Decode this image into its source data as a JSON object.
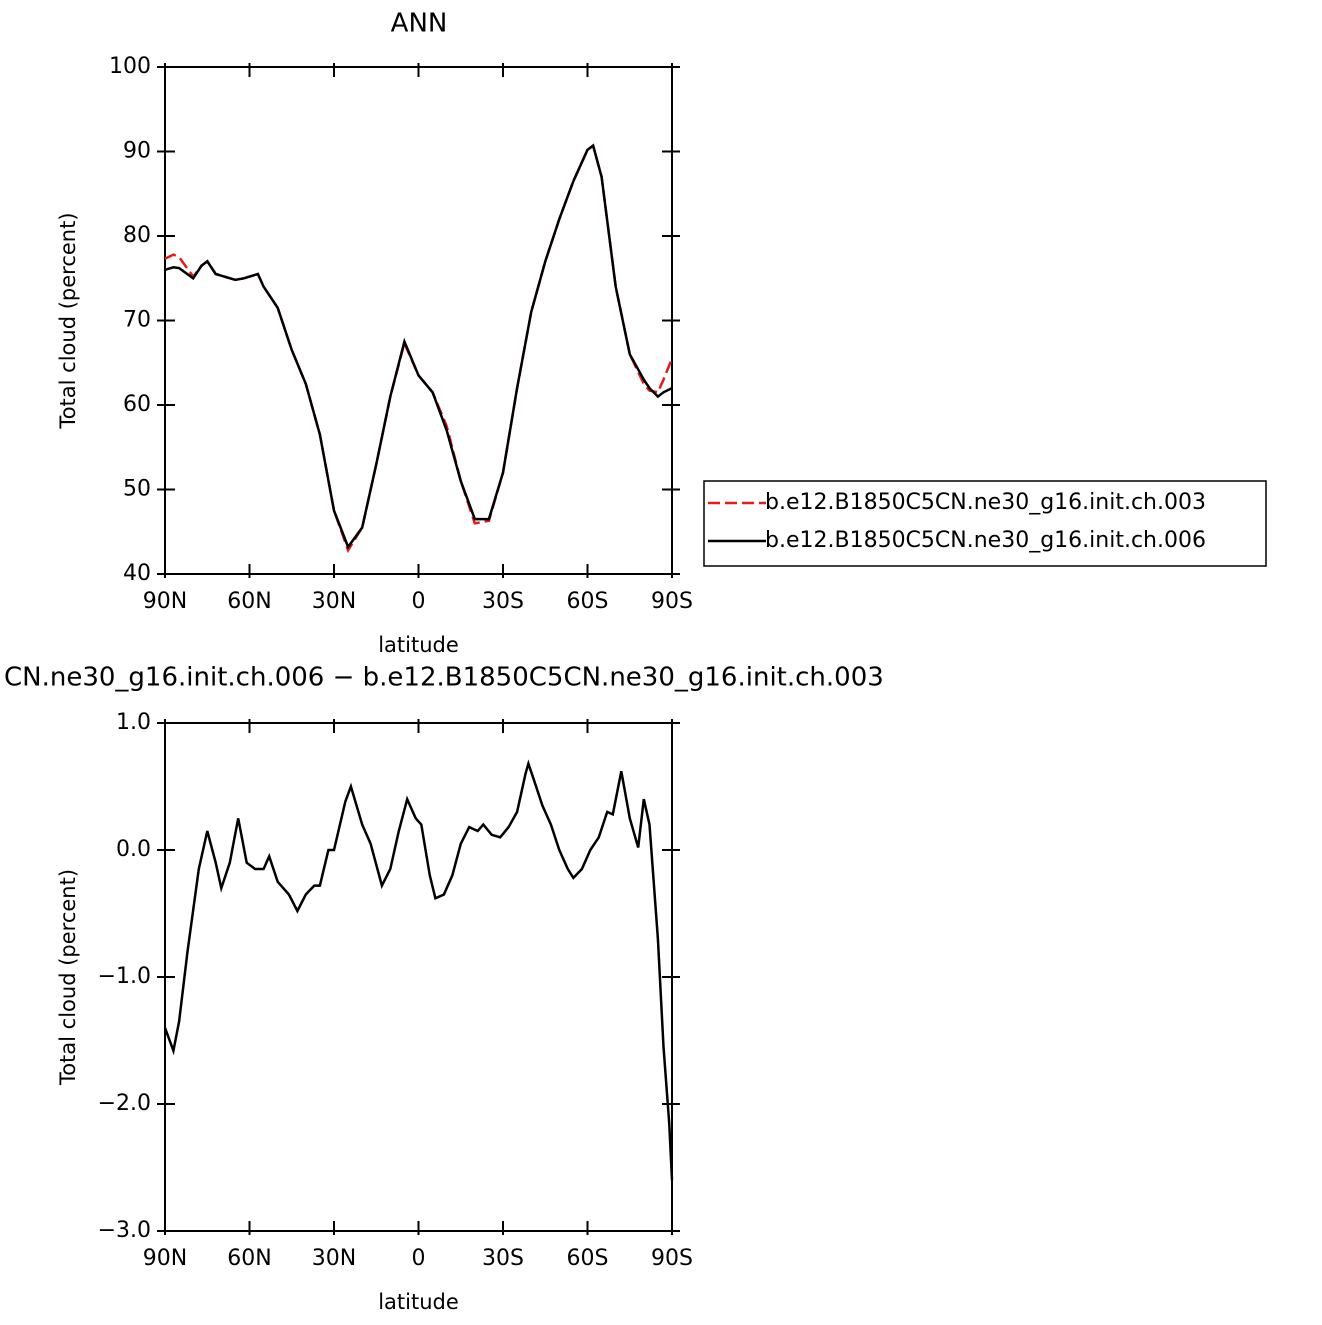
{
  "chart_data": [
    {
      "type": "line",
      "title": "ANN",
      "xlabel": "latitude",
      "ylabel": "Total cloud (percent)",
      "xlim": [
        90,
        -90
      ],
      "ylim": [
        40,
        100
      ],
      "xticks": [
        {
          "value": 90,
          "label": "90N"
        },
        {
          "value": 60,
          "label": "60N"
        },
        {
          "value": 30,
          "label": "30N"
        },
        0,
        {
          "value": -30,
          "label": "30S"
        },
        {
          "value": -60,
          "label": "60S"
        },
        {
          "value": -90,
          "label": "90S"
        }
      ],
      "yticks": [
        40,
        50,
        60,
        70,
        80,
        90,
        100
      ],
      "legend": "right",
      "x": [
        90,
        87,
        85,
        80,
        77,
        75,
        72,
        70,
        65,
        62,
        57,
        55,
        50,
        45,
        40,
        35,
        30,
        25,
        20,
        15,
        10,
        5,
        0,
        -5,
        -10,
        -15,
        -20,
        -25,
        -30,
        -35,
        -40,
        -45,
        -50,
        -55,
        -60,
        -62,
        -65,
        -70,
        -75,
        -80,
        -82,
        -85,
        -87,
        -90
      ],
      "series": [
        {
          "name": "b.e12.B1850C5CN.ne30_g16.init.ch.003",
          "color": "#e41a1c",
          "line_style": "dashed",
          "values": [
            77.3,
            77.8,
            77.5,
            75.2,
            76.5,
            77,
            75.5,
            75.3,
            74.8,
            75,
            75.5,
            74,
            71.5,
            66.5,
            62.5,
            56.5,
            47.5,
            42.8,
            45.5,
            53,
            61,
            67.3,
            63.5,
            61.5,
            57.5,
            51,
            46,
            46.3,
            52,
            62,
            71,
            77,
            82,
            86.5,
            90.2,
            90.7,
            87,
            74,
            66,
            62.5,
            61.7,
            61.5,
            63,
            65.5
          ]
        },
        {
          "name": "b.e12.B1850C5CN.ne30_g16.init.ch.006",
          "color": "#000000",
          "line_style": "solid",
          "values": [
            76,
            76.3,
            76.2,
            75,
            76.5,
            77,
            75.5,
            75.3,
            74.8,
            75,
            75.5,
            74,
            71.5,
            66.5,
            62.5,
            56.5,
            47.5,
            43.2,
            45.5,
            53,
            61,
            67.5,
            63.5,
            61.5,
            57,
            51,
            46.5,
            46.5,
            52,
            62,
            71,
            77,
            82,
            86.5,
            90.2,
            90.7,
            87,
            74,
            66,
            63,
            62,
            61,
            61.5,
            62
          ]
        }
      ]
    },
    {
      "type": "line",
      "title": "CN.ne30_g16.init.ch.006 − b.e12.B1850C5CN.ne30_g16.init.ch.003",
      "xlabel": "latitude",
      "ylabel": "Total cloud (percent)",
      "xlim": [
        90,
        -90
      ],
      "ylim": [
        -3,
        1
      ],
      "xticks": [
        {
          "value": 90,
          "label": "90N"
        },
        {
          "value": 60,
          "label": "60N"
        },
        {
          "value": 30,
          "label": "30N"
        },
        0,
        {
          "value": -30,
          "label": "30S"
        },
        {
          "value": -60,
          "label": "60S"
        },
        {
          "value": -90,
          "label": "90S"
        }
      ],
      "yticks": [
        {
          "value": -3,
          "label": "−3.0"
        },
        {
          "value": -2,
          "label": "−2.0"
        },
        {
          "value": -1,
          "label": "−1.0"
        },
        {
          "value": 0,
          "label": "0.0"
        },
        {
          "value": 1,
          "label": "1.0"
        }
      ],
      "x": [
        90,
        87,
        85,
        82,
        78,
        75,
        72,
        70,
        67,
        64,
        61,
        58,
        55,
        53,
        50,
        46,
        43,
        40,
        37,
        35,
        32,
        30,
        26,
        24,
        20,
        17,
        13,
        10,
        7,
        4,
        1,
        -1,
        -4,
        -6,
        -9,
        -12,
        -15,
        -18,
        -21,
        -23,
        -26,
        -29,
        -32,
        -35,
        -38,
        -39,
        -41,
        -44,
        -47,
        -50,
        -53,
        -55,
        -58,
        -61,
        -64,
        -67,
        -69,
        -72,
        -75,
        -78,
        -80,
        -82,
        -85,
        -87,
        -89,
        -90
      ],
      "series": [
        {
          "color": "#000000",
          "line_style": "solid",
          "values": [
            -1.4,
            -1.58,
            -1.35,
            -0.8,
            -0.15,
            0.15,
            -0.1,
            -0.3,
            -0.1,
            0.25,
            -0.1,
            -0.15,
            -0.15,
            -0.05,
            -0.25,
            -0.35,
            -0.48,
            -0.35,
            -0.28,
            -0.28,
            0.0,
            0.0,
            0.38,
            0.5,
            0.2,
            0.05,
            -0.28,
            -0.15,
            0.15,
            0.4,
            0.25,
            0.2,
            -0.2,
            -0.38,
            -0.35,
            -0.2,
            0.05,
            0.18,
            0.15,
            0.2,
            0.12,
            0.1,
            0.18,
            0.3,
            0.6,
            0.68,
            0.55,
            0.35,
            0.2,
            0.0,
            -0.15,
            -0.22,
            -0.15,
            0.0,
            0.1,
            0.3,
            0.28,
            0.62,
            0.25,
            0.02,
            0.4,
            0.2,
            -0.7,
            -1.55,
            -2.15,
            -2.6
          ]
        }
      ]
    }
  ]
}
